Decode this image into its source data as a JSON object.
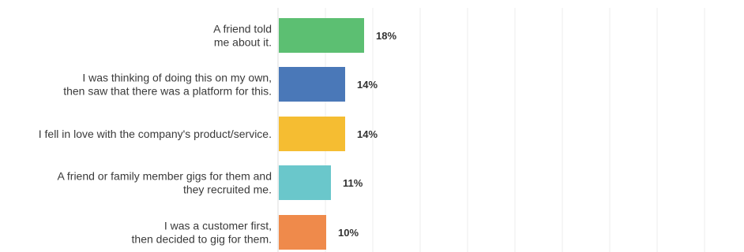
{
  "chart_data": {
    "type": "bar",
    "orientation": "horizontal",
    "categories": [
      [
        "A friend told",
        "me about it."
      ],
      [
        "I was thinking of doing this on my own,",
        "then saw that there was a platform for this."
      ],
      [
        "I fell in love with the company's product/service."
      ],
      [
        "A friend or family member gigs for them and",
        "they recruited me."
      ],
      [
        "I was a customer first,",
        "then decided to gig for them."
      ]
    ],
    "values": [
      18,
      14,
      14,
      11,
      10
    ],
    "value_labels": [
      "18%",
      "14%",
      "14%",
      "11%",
      "10%"
    ],
    "colors": [
      "#5cbf72",
      "#4a78b8",
      "#f5bd32",
      "#6ac7cb",
      "#ef8a4b"
    ],
    "xlim": [
      0,
      100
    ],
    "grid": true,
    "legend": "none"
  }
}
